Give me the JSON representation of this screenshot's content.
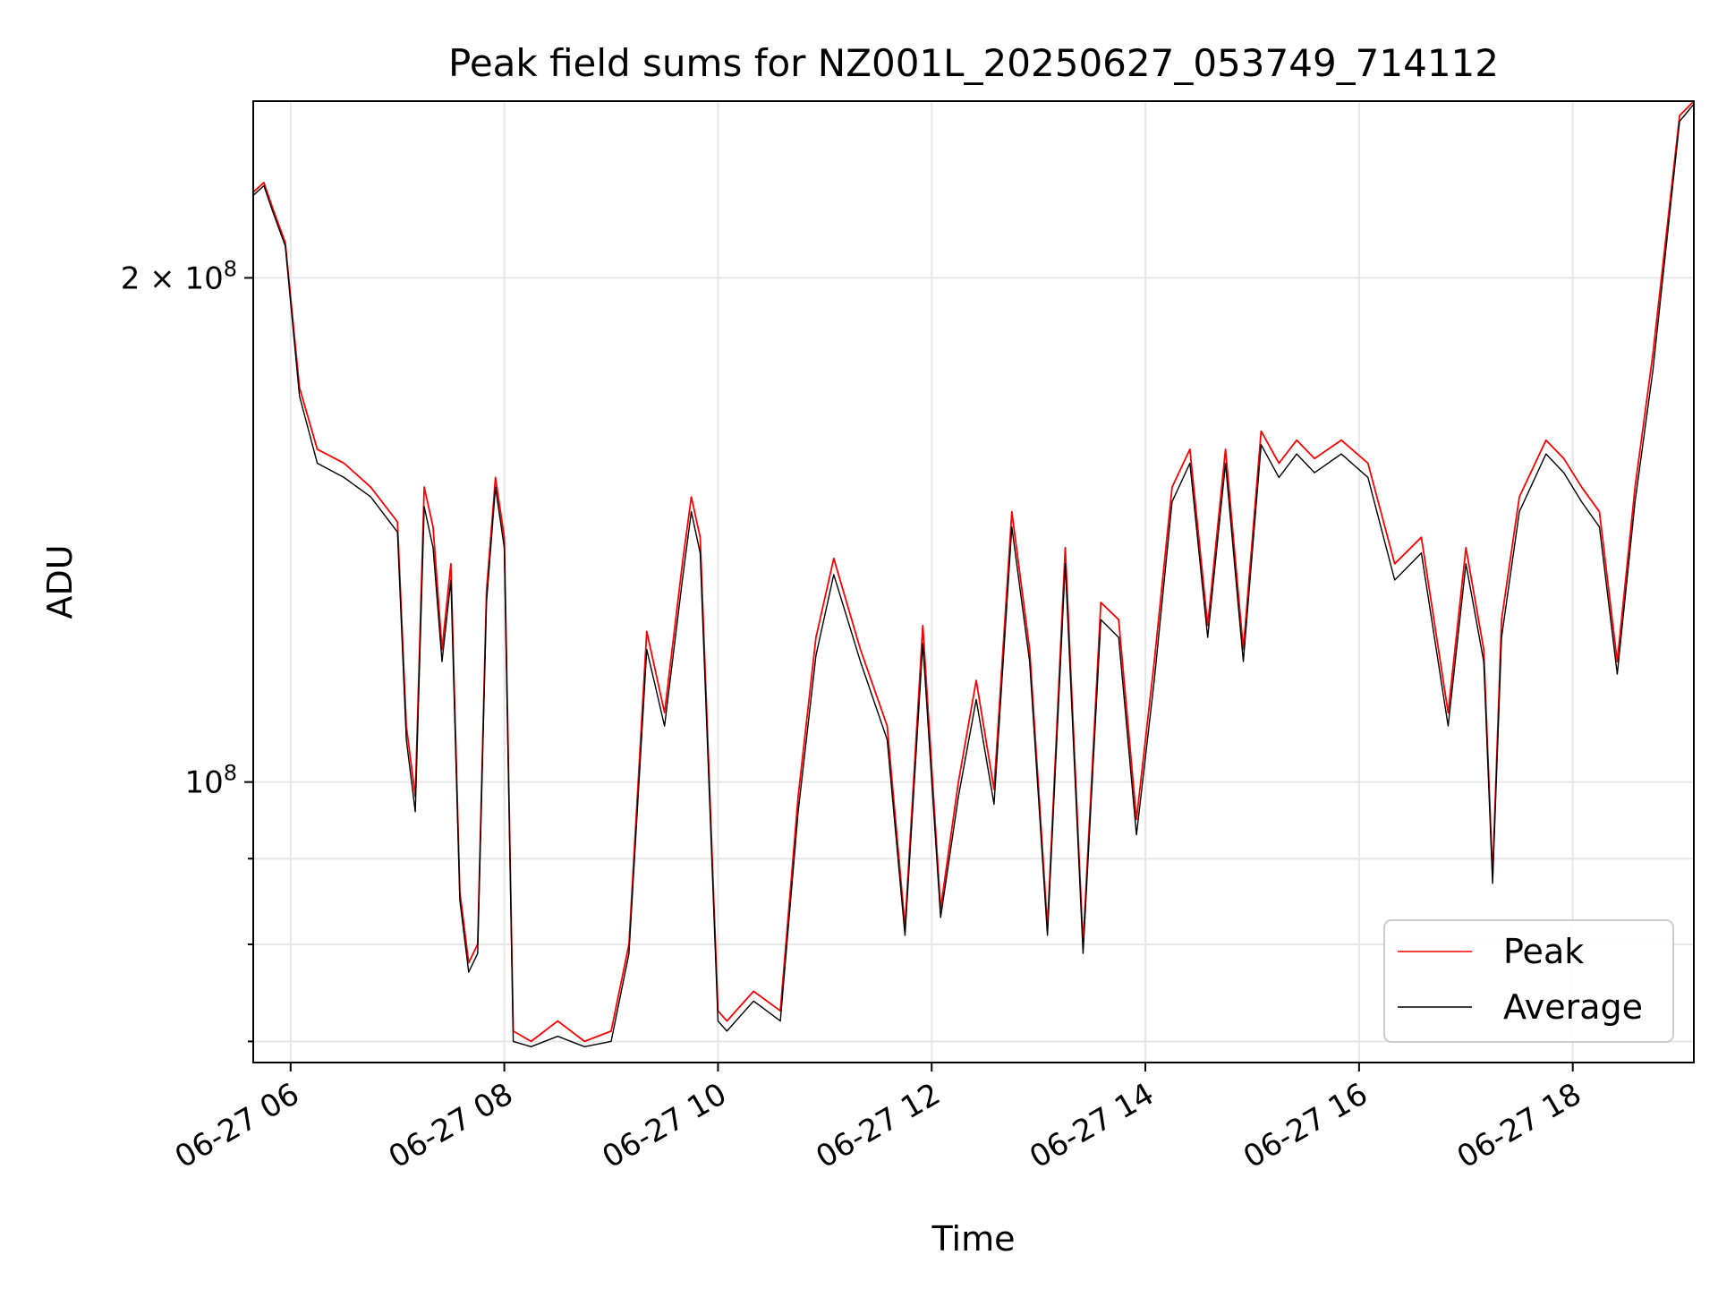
{
  "chart_data": {
    "type": "line",
    "title": "Peak field sums for NZ001L_20250627_053749_714112",
    "xlabel": "Time",
    "ylabel": "ADU",
    "x_range": [
      "2025-06-27 05:39",
      "2025-06-27 19:08"
    ],
    "y_scale": "log",
    "ylim": [
      68000000,
      255000000
    ],
    "x_ticks": [
      "06-27 06",
      "06-27 08",
      "06-27 10",
      "06-27 12",
      "06-27 14",
      "06-27 16",
      "06-27 18"
    ],
    "y_tick_labels": [
      "2 × 10^8",
      "10^8"
    ],
    "grid": true,
    "legend_position": "lower-right",
    "series": [
      {
        "name": "Peak",
        "color": "#ff0000",
        "x": [
          "05:39",
          "05:45",
          "05:50",
          "05:57",
          "06:05",
          "06:15",
          "06:30",
          "06:45",
          "07:00",
          "07:05",
          "07:10",
          "07:15",
          "07:20",
          "07:25",
          "07:30",
          "07:35",
          "07:40",
          "07:45",
          "07:50",
          "07:55",
          "08:00",
          "08:05",
          "08:15",
          "08:30",
          "08:45",
          "09:00",
          "09:10",
          "09:20",
          "09:30",
          "09:40",
          "09:45",
          "09:50",
          "10:00",
          "10:05",
          "10:20",
          "10:35",
          "10:45",
          "10:55",
          "11:05",
          "11:20",
          "11:35",
          "11:45",
          "11:55",
          "12:05",
          "12:15",
          "12:25",
          "12:35",
          "12:45",
          "12:55",
          "13:05",
          "13:15",
          "13:25",
          "13:35",
          "13:45",
          "13:55",
          "14:05",
          "14:15",
          "14:25",
          "14:35",
          "14:45",
          "14:55",
          "15:05",
          "15:15",
          "15:25",
          "15:35",
          "15:50",
          "16:05",
          "16:20",
          "16:35",
          "16:50",
          "17:00",
          "17:10",
          "17:15",
          "17:20",
          "17:30",
          "17:45",
          "17:55",
          "18:05",
          "18:15",
          "18:25",
          "18:35",
          "18:45",
          "19:00",
          "19:08"
        ],
        "values": [
          225000000,
          228000000,
          220000000,
          210000000,
          172000000,
          158000000,
          155000000,
          150000000,
          143000000,
          108000000,
          98000000,
          150000000,
          142000000,
          120000000,
          135000000,
          86000000,
          78000000,
          80000000,
          130000000,
          152000000,
          140000000,
          71000000,
          70000000,
          72000000,
          70000000,
          71000000,
          80000000,
          123000000,
          110000000,
          135000000,
          148000000,
          140000000,
          73000000,
          72000000,
          75000000,
          73000000,
          98000000,
          122000000,
          136000000,
          120000000,
          108000000,
          82000000,
          124000000,
          84000000,
          100000000,
          115000000,
          99000000,
          145000000,
          120000000,
          82000000,
          138000000,
          80000000,
          128000000,
          125000000,
          95000000,
          118000000,
          150000000,
          158000000,
          124000000,
          158000000,
          120000000,
          162000000,
          155000000,
          160000000,
          156000000,
          160000000,
          155000000,
          135000000,
          140000000,
          110000000,
          138000000,
          120000000,
          88000000,
          125000000,
          148000000,
          160000000,
          156000000,
          150000000,
          145000000,
          118000000,
          150000000,
          180000000,
          250000000,
          255000000
        ]
      },
      {
        "name": "Average",
        "color": "#000000",
        "x": [
          "05:39",
          "05:45",
          "05:50",
          "05:57",
          "06:05",
          "06:15",
          "06:30",
          "06:45",
          "07:00",
          "07:05",
          "07:10",
          "07:15",
          "07:20",
          "07:25",
          "07:30",
          "07:35",
          "07:40",
          "07:45",
          "07:50",
          "07:55",
          "08:00",
          "08:05",
          "08:15",
          "08:30",
          "08:45",
          "09:00",
          "09:10",
          "09:20",
          "09:30",
          "09:40",
          "09:45",
          "09:50",
          "10:00",
          "10:05",
          "10:20",
          "10:35",
          "10:45",
          "10:55",
          "11:05",
          "11:20",
          "11:35",
          "11:45",
          "11:55",
          "12:05",
          "12:15",
          "12:25",
          "12:35",
          "12:45",
          "12:55",
          "13:05",
          "13:15",
          "13:25",
          "13:35",
          "13:45",
          "13:55",
          "14:05",
          "14:15",
          "14:25",
          "14:35",
          "14:45",
          "14:55",
          "15:05",
          "15:15",
          "15:25",
          "15:35",
          "15:50",
          "16:05",
          "16:20",
          "16:35",
          "16:50",
          "17:00",
          "17:10",
          "17:15",
          "17:20",
          "17:30",
          "17:45",
          "17:55",
          "18:05",
          "18:15",
          "18:25",
          "18:35",
          "18:45",
          "19:00",
          "19:08"
        ],
        "values": [
          224000000,
          227000000,
          219000000,
          209000000,
          170000000,
          155000000,
          152000000,
          148000000,
          141000000,
          106000000,
          96000000,
          146000000,
          138000000,
          118000000,
          132000000,
          85000000,
          77000000,
          79000000,
          128000000,
          150000000,
          138000000,
          70000000,
          69500000,
          70500000,
          69500000,
          70000000,
          79000000,
          120000000,
          108000000,
          132000000,
          145000000,
          137000000,
          72000000,
          71000000,
          74000000,
          72000000,
          96000000,
          119000000,
          133000000,
          118000000,
          106000000,
          81000000,
          121000000,
          83000000,
          98000000,
          112000000,
          97000000,
          142000000,
          118000000,
          81000000,
          135000000,
          79000000,
          125000000,
          122000000,
          93000000,
          115000000,
          147000000,
          155000000,
          122000000,
          155000000,
          118000000,
          159000000,
          152000000,
          157000000,
          153000000,
          157000000,
          152000000,
          132000000,
          137000000,
          108000000,
          135000000,
          118000000,
          87000000,
          122000000,
          145000000,
          157000000,
          153000000,
          147000000,
          142000000,
          116000000,
          147000000,
          176000000,
          248000000,
          254000000
        ]
      }
    ]
  }
}
